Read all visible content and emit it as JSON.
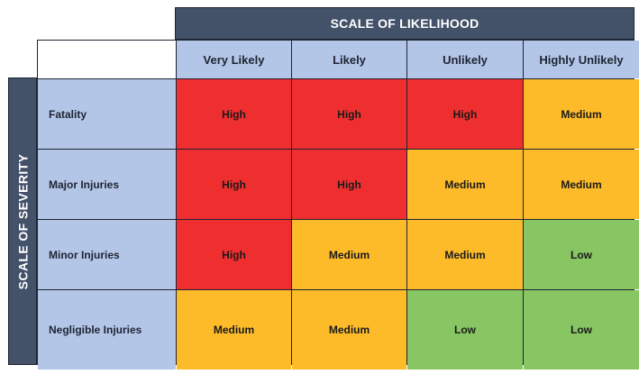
{
  "likelihood_title": "SCALE OF LIKELIHOOD",
  "severity_title": "SCALE OF SEVERITY",
  "columns": [
    "Very Likely",
    "Likely",
    "Unlikely",
    "Highly Unlikely"
  ],
  "rows": [
    {
      "label": "Fatality",
      "cells": [
        "High",
        "High",
        "High",
        "Medium"
      ]
    },
    {
      "label": "Major Injuries",
      "cells": [
        "High",
        "High",
        "Medium",
        "Medium"
      ]
    },
    {
      "label": "Minor Injuries",
      "cells": [
        "High",
        "Medium",
        "Medium",
        "Low"
      ]
    },
    {
      "label": "Negligible Injuries",
      "cells": [
        "Medium",
        "Medium",
        "Low",
        "Low"
      ]
    }
  ],
  "colors": {
    "header_bg": "#435169",
    "label_bg": "#b4c6e7",
    "High": "#ef2f2f",
    "Medium": "#fdbb2a",
    "Low": "#87c662"
  }
}
